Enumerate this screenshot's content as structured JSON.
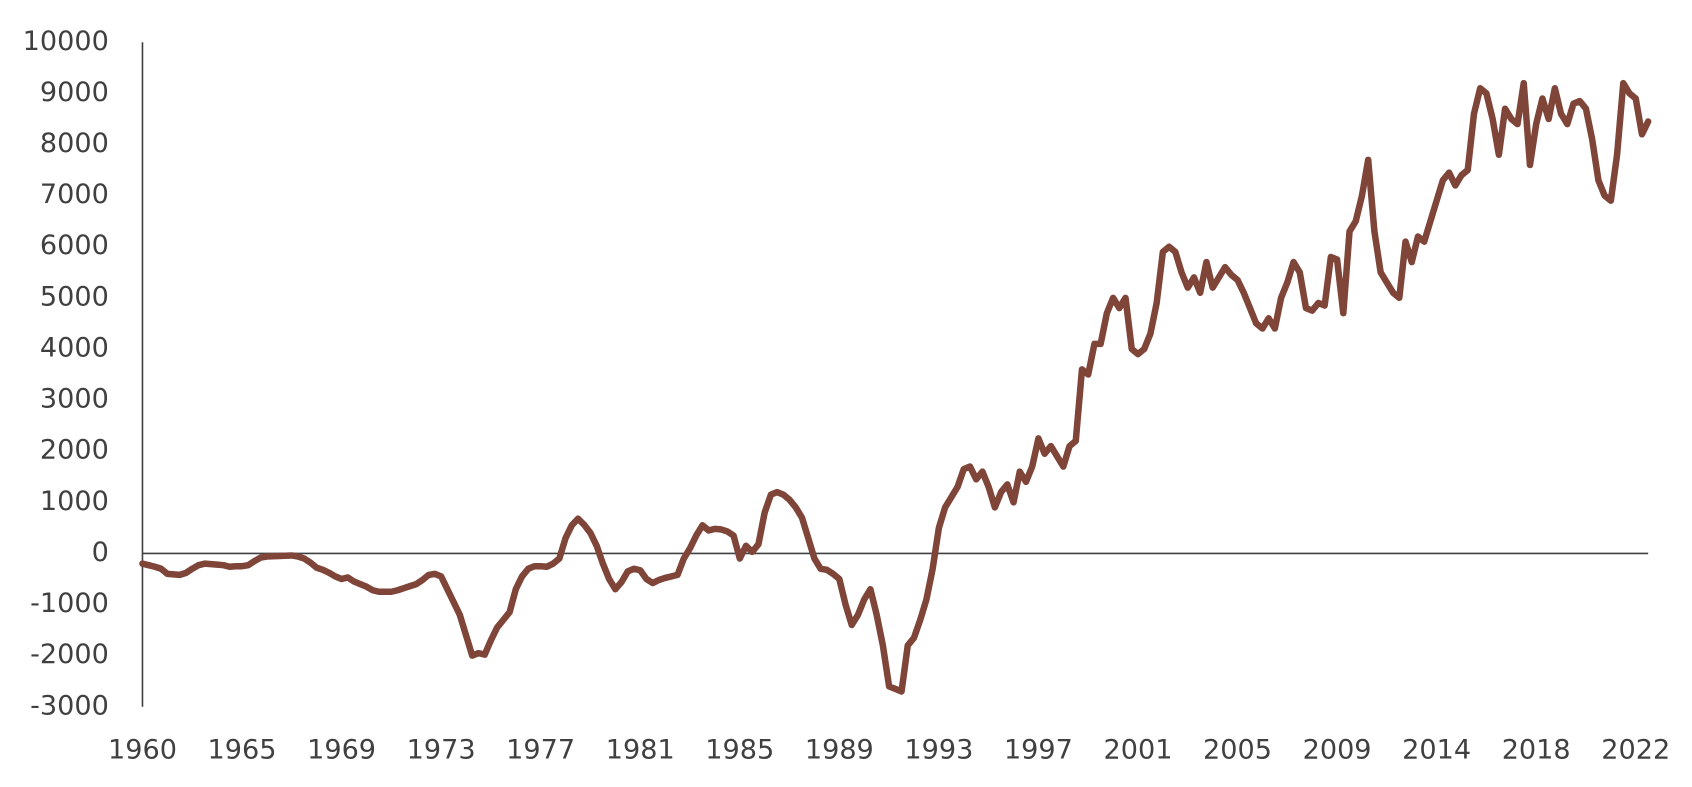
{
  "chart_data": {
    "type": "line",
    "color": "#7f4539",
    "categories": [
      "1960",
      null,
      null,
      null,
      null,
      null,
      null,
      null,
      null,
      null,
      null,
      null,
      null,
      null,
      null,
      null,
      "1965",
      null,
      null,
      null,
      null,
      null,
      null,
      null,
      null,
      null,
      null,
      null,
      null,
      null,
      null,
      null,
      "1969",
      null,
      null,
      null,
      null,
      null,
      null,
      null,
      null,
      null,
      null,
      null,
      null,
      null,
      null,
      null,
      "1973",
      null,
      null,
      null,
      null,
      null,
      null,
      null,
      null,
      null,
      null,
      null,
      null,
      null,
      null,
      null,
      "1977",
      null,
      null,
      null,
      null,
      null,
      null,
      null,
      null,
      null,
      null,
      null,
      null,
      null,
      null,
      null,
      "1981",
      null,
      null,
      null,
      null,
      null,
      null,
      null,
      null,
      null,
      null,
      null,
      null,
      null,
      null,
      null,
      "1985",
      null,
      null,
      null,
      null,
      null,
      null,
      null,
      null,
      null,
      null,
      null,
      null,
      null,
      null,
      null,
      "1989",
      null,
      null,
      null,
      null,
      null,
      null,
      null,
      null,
      null,
      null,
      null,
      null,
      null,
      null,
      null,
      "1993",
      null,
      null,
      null,
      null,
      null,
      null,
      null,
      null,
      null,
      null,
      null,
      null,
      null,
      null,
      null,
      "1997",
      null,
      null,
      null,
      null,
      null,
      null,
      null,
      null,
      null,
      null,
      null,
      null,
      null,
      null,
      null,
      "2001",
      null,
      null,
      null,
      null,
      null,
      null,
      null,
      null,
      null,
      null,
      null,
      null,
      null,
      null,
      null,
      "2005",
      null,
      null,
      null,
      null,
      null,
      null,
      null,
      null,
      null,
      null,
      null,
      null,
      null,
      null,
      null,
      "2009",
      null,
      null,
      null,
      null,
      null,
      null,
      null,
      null,
      null,
      null,
      null,
      null,
      null,
      null,
      null,
      "2014",
      null,
      null,
      null,
      null,
      null,
      null,
      null,
      null,
      null,
      null,
      null,
      null,
      null,
      null,
      null,
      "2018",
      null,
      null,
      null,
      null,
      null,
      null,
      null,
      null,
      null,
      null,
      null,
      null,
      null,
      null,
      null,
      "2022",
      null,
      null
    ],
    "values": [
      -200,
      -230,
      -260,
      -300,
      -400,
      -410,
      -420,
      -380,
      -300,
      -230,
      -200,
      -210,
      -220,
      -230,
      -260,
      -250,
      -250,
      -230,
      -150,
      -80,
      -60,
      -55,
      -50,
      -45,
      -40,
      -60,
      -100,
      -180,
      -280,
      -320,
      -380,
      -450,
      -500,
      -470,
      -550,
      -600,
      -650,
      -720,
      -750,
      -750,
      -750,
      -720,
      -680,
      -640,
      -600,
      -520,
      -420,
      -400,
      -450,
      -700,
      -950,
      -1200,
      -1600,
      -2000,
      -1950,
      -1980,
      -1700,
      -1450,
      -1300,
      -1150,
      -700,
      -450,
      -300,
      -250,
      -250,
      -260,
      -200,
      -100,
      300,
      550,
      680,
      560,
      400,
      150,
      -200,
      -500,
      -700,
      -560,
      -350,
      -300,
      -330,
      -500,
      -580,
      -520,
      -480,
      -450,
      -420,
      -100,
      100,
      350,
      550,
      450,
      480,
      470,
      430,
      350,
      -100,
      150,
      30,
      180,
      800,
      1150,
      1200,
      1150,
      1050,
      900,
      700,
      300,
      -100,
      -300,
      -320,
      -400,
      -500,
      -1000,
      -1400,
      -1200,
      -900,
      -700,
      -1200,
      -1800,
      -2600,
      -2650,
      -2700,
      -1800,
      -1650,
      -1300,
      -900,
      -300,
      500,
      900,
      1100,
      1300,
      1650,
      1700,
      1450,
      1600,
      1300,
      900,
      1200,
      1350,
      1000,
      1600,
      1400,
      1700,
      2250,
      1950,
      2100,
      1900,
      1700,
      2100,
      2200,
      3600,
      3500,
      4100,
      4100,
      4700,
      5000,
      4800,
      5000,
      4000,
      3900,
      4000,
      4300,
      4900,
      5900,
      6000,
      5900,
      5500,
      5200,
      5400,
      5100,
      5700,
      5200,
      5400,
      5600,
      5450,
      5350,
      5100,
      4800,
      4500,
      4400,
      4600,
      4400,
      5000,
      5300,
      5700,
      5500,
      4800,
      4750,
      4900,
      4850,
      5800,
      5750,
      4700,
      6300,
      6500,
      7000,
      7700,
      6300,
      5500,
      5300,
      5100,
      5000,
      6100,
      5700,
      6200,
      6100,
      6500,
      6900,
      7300,
      7450,
      7200,
      7400,
      7500,
      8600,
      9100,
      9000,
      8500,
      7800,
      8700,
      8500,
      8400,
      9200,
      7600,
      8400,
      8900,
      8500,
      9100,
      8600,
      8400,
      8800,
      8850,
      8700,
      8100,
      7300,
      7000,
      6900,
      7800,
      9200,
      9000,
      8900,
      8200,
      8450
    ],
    "ylim": [
      -3000,
      10000
    ],
    "yticks": [
      -3000,
      -2000,
      -1000,
      0,
      1000,
      2000,
      3000,
      4000,
      5000,
      6000,
      7000,
      8000,
      9000,
      10000
    ]
  }
}
